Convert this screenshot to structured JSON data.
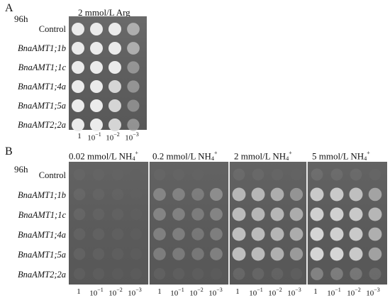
{
  "panel_a": {
    "letter": "A",
    "time": "96h",
    "condition": "2 mmol/L Arg",
    "strains": [
      "Control",
      "BnaAMT1;1b",
      "BnaAMT1;1c",
      "BnaAMT1;4a",
      "BnaAMT1;5a",
      "BnaAMT2;2a"
    ],
    "dilutions": [
      {
        "base": "1",
        "exp": ""
      },
      {
        "base": "10",
        "exp": "−1"
      },
      {
        "base": "10",
        "exp": "−2"
      },
      {
        "base": "10",
        "exp": "−3"
      }
    ],
    "growth": [
      [
        1.0,
        1.0,
        1.0,
        0.7
      ],
      [
        1.0,
        1.0,
        1.0,
        0.7
      ],
      [
        1.0,
        1.0,
        1.0,
        0.55
      ],
      [
        1.0,
        1.0,
        0.9,
        0.55
      ],
      [
        1.0,
        1.0,
        0.9,
        0.5
      ],
      [
        1.0,
        1.0,
        0.9,
        0.55
      ]
    ]
  },
  "panel_b": {
    "letter": "B",
    "time": "96h",
    "conditions": [
      {
        "prefix": "0.02 mmol/L NH",
        "sub": "4",
        "sup": "+"
      },
      {
        "prefix": "0.2 mmol/L NH",
        "sub": "4",
        "sup": "+"
      },
      {
        "prefix": "2 mmol/L NH",
        "sub": "4",
        "sup": "+"
      },
      {
        "prefix": "5 mmol/L NH",
        "sub": "4",
        "sup": "+"
      }
    ],
    "strains": [
      "Control",
      "BnaAMT1;1b",
      "BnaAMT1;1c",
      "BnaAMT1;4a",
      "BnaAMT1;5a",
      "BnaAMT2;2a"
    ],
    "dilutions": [
      {
        "base": "1",
        "exp": ""
      },
      {
        "base": "10",
        "exp": "−1"
      },
      {
        "base": "10",
        "exp": "−2"
      },
      {
        "base": "10",
        "exp": "−3"
      }
    ],
    "growth": [
      [
        [
          0.12,
          0.1,
          0.08,
          0.05
        ],
        [
          0.16,
          0.12,
          0.1,
          0.06
        ],
        [
          0.15,
          0.12,
          0.1,
          0.06
        ],
        [
          0.14,
          0.12,
          0.09,
          0.06
        ],
        [
          0.14,
          0.12,
          0.09,
          0.06
        ],
        [
          0.1,
          0.08,
          0.06,
          0.04
        ]
      ],
      [
        [
          0.12,
          0.1,
          0.08,
          0.06
        ],
        [
          0.45,
          0.42,
          0.38,
          0.5
        ],
        [
          0.45,
          0.42,
          0.38,
          0.45
        ],
        [
          0.42,
          0.4,
          0.35,
          0.4
        ],
        [
          0.4,
          0.38,
          0.35,
          0.42
        ],
        [
          0.12,
          0.1,
          0.08,
          0.06
        ]
      ],
      [
        [
          0.18,
          0.15,
          0.12,
          0.08
        ],
        [
          0.75,
          0.75,
          0.7,
          0.55
        ],
        [
          0.78,
          0.75,
          0.75,
          0.7
        ],
        [
          0.8,
          0.78,
          0.75,
          0.7
        ],
        [
          0.8,
          0.78,
          0.72,
          0.6
        ],
        [
          0.2,
          0.18,
          0.15,
          0.1
        ]
      ],
      [
        [
          0.22,
          0.2,
          0.18,
          0.12
        ],
        [
          0.85,
          0.85,
          0.8,
          0.65
        ],
        [
          0.88,
          0.88,
          0.85,
          0.75
        ],
        [
          0.9,
          0.88,
          0.85,
          0.72
        ],
        [
          0.9,
          0.9,
          0.85,
          0.65
        ],
        [
          0.45,
          0.4,
          0.35,
          0.25
        ]
      ]
    ]
  }
}
